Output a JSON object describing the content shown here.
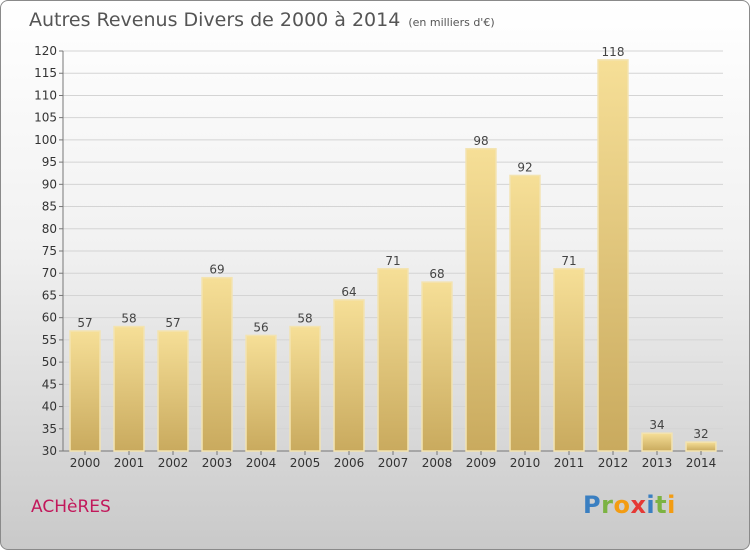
{
  "title": "Autres Revenus Divers de 2000 à 2014",
  "unit_note": "(en milliers d'€)",
  "city": "ACHèRES",
  "logo": {
    "letters": [
      {
        "ch": "P",
        "color": "#3a7fc1"
      },
      {
        "ch": "r",
        "color": "#7cb342"
      },
      {
        "ch": "o",
        "color": "#f39c12"
      },
      {
        "ch": "x",
        "color": "#e53935"
      },
      {
        "ch": "i",
        "color": "#3a7fc1"
      },
      {
        "ch": "t",
        "color": "#7cb342"
      },
      {
        "ch": "i",
        "color": "#f39c12"
      }
    ]
  },
  "chart_data": {
    "type": "bar",
    "title": "Autres Revenus Divers de 2000 à 2014",
    "categories": [
      "2000",
      "2001",
      "2002",
      "2003",
      "2004",
      "2005",
      "2006",
      "2007",
      "2008",
      "2009",
      "2010",
      "2011",
      "2012",
      "2013",
      "2014"
    ],
    "values": [
      57,
      58,
      57,
      69,
      56,
      58,
      64,
      71,
      68,
      98,
      92,
      71,
      118,
      34,
      32
    ],
    "ylim": [
      30,
      120
    ],
    "yticks": [
      30,
      35,
      40,
      45,
      50,
      55,
      60,
      65,
      70,
      75,
      80,
      85,
      90,
      95,
      100,
      105,
      110,
      115,
      120
    ],
    "grid": true,
    "bar_color": "#e8cd7f"
  }
}
